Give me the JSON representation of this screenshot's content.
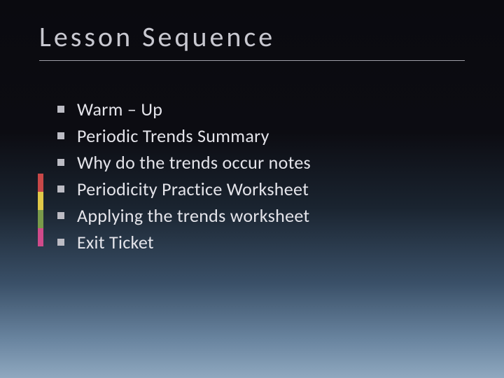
{
  "slide": {
    "title": "Lesson Sequence",
    "title_fontsize": 40,
    "title_color": "#c8c8d0",
    "title_letterspacing": 4,
    "underline_color": "#a0a0a8",
    "background_gradient": [
      "#0a0a0f",
      "#0c0c12",
      "#1a2430",
      "#3a5068",
      "#6a85a0",
      "#8fa8bf"
    ],
    "accent_colors": [
      "#c84848",
      "#e0c848",
      "#7a9a4a",
      "#d04a8a"
    ],
    "bullet_color": "#bcbcc4",
    "text_color": "#e4e4ea",
    "item_fontsize": 26,
    "items": [
      "Warm – Up",
      "Periodic Trends Summary",
      "Why do the trends occur notes",
      "Periodicity Practice Worksheet",
      "Applying the trends worksheet",
      "Exit Ticket"
    ]
  }
}
